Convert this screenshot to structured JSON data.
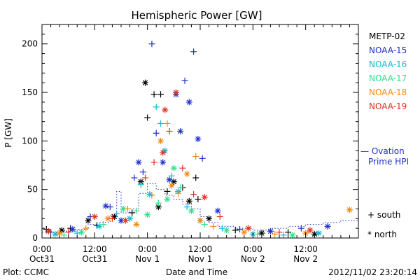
{
  "chart_data": {
    "type": "scatter",
    "title": "Hemispheric Power [GW]",
    "xlabel": "Date and Time",
    "ylabel": "P [GW]",
    "xlim": [
      "2012-10-31 00:00",
      "2012-11-03 00:00"
    ],
    "ylim": [
      0,
      220
    ],
    "yticks": [
      0,
      50,
      100,
      150,
      200
    ],
    "xticks": [
      {
        "line1": "0:00",
        "line2": "Oct31",
        "t": "2012-10-31 00:00"
      },
      {
        "line1": "12:00",
        "line2": "Oct31",
        "t": "2012-10-31 12:00"
      },
      {
        "line1": "0:00",
        "line2": "Nov 1",
        "t": "2012-11-01 00:00"
      },
      {
        "line1": "12:00",
        "line2": "Nov 1",
        "t": "2012-11-01 12:00"
      },
      {
        "line1": "0:00",
        "line2": "Nov 2",
        "t": "2012-11-02 00:00"
      },
      {
        "line1": "12:00",
        "line2": "Nov 2",
        "t": "2012-11-02 12:00"
      }
    ],
    "legend": {
      "placement": "right",
      "entries": [
        {
          "label": "METP-02",
          "color": "#000000"
        },
        {
          "label": "NOAA-15",
          "color": "#1e2fc8"
        },
        {
          "label": "NOAA-16",
          "color": "#17b6d6"
        },
        {
          "label": "NOAA-17",
          "color": "#2fe08a"
        },
        {
          "label": "NOAA-18",
          "color": "#f08a10"
        },
        {
          "label": "NOAA-19",
          "color": "#e0301e"
        }
      ],
      "model_label_line1": "— Ovation",
      "model_label_line2": "Prime HPI",
      "model_color": "#1e2fc8",
      "marker_keys": [
        {
          "symbol": "+",
          "label": "south"
        },
        {
          "symbol": "*",
          "label": "north"
        }
      ]
    },
    "series": [
      {
        "name": "METP-02",
        "color": "#000000",
        "points": [
          {
            "x": 1.0,
            "y": 9,
            "m": "+"
          },
          {
            "x": 4.5,
            "y": 8,
            "m": "*"
          },
          {
            "x": 6.5,
            "y": 10,
            "m": "+"
          },
          {
            "x": 10.5,
            "y": 18,
            "m": "*"
          },
          {
            "x": 12.5,
            "y": 13,
            "m": "+"
          },
          {
            "x": 16.5,
            "y": 22,
            "m": "*"
          },
          {
            "x": 20.5,
            "y": 26,
            "m": "+"
          },
          {
            "x": 22.5,
            "y": 58,
            "m": "*"
          },
          {
            "x": 23.5,
            "y": 160,
            "m": "*"
          },
          {
            "x": 24.0,
            "y": 124,
            "m": "+"
          },
          {
            "x": 25.5,
            "y": 148,
            "m": "+"
          },
          {
            "x": 27.0,
            "y": 148,
            "m": "+"
          },
          {
            "x": 26.5,
            "y": 32,
            "m": "*"
          },
          {
            "x": 28.5,
            "y": 48,
            "m": "+"
          },
          {
            "x": 30.0,
            "y": 58,
            "m": "*"
          },
          {
            "x": 32.0,
            "y": 52,
            "m": "+"
          },
          {
            "x": 33.5,
            "y": 38,
            "m": "*"
          },
          {
            "x": 35.0,
            "y": 62,
            "m": "+"
          },
          {
            "x": 35.5,
            "y": 40,
            "m": "+"
          },
          {
            "x": 38.0,
            "y": 20,
            "m": "*"
          },
          {
            "x": 44.0,
            "y": 8,
            "m": "+"
          },
          {
            "x": 50.0,
            "y": 5,
            "m": "*"
          },
          {
            "x": 56.0,
            "y": 6,
            "m": "+"
          },
          {
            "x": 62.0,
            "y": 4,
            "m": "*"
          }
        ]
      },
      {
        "name": "NOAA-15",
        "color": "#1e2fc8",
        "points": [
          {
            "x": 2.0,
            "y": 6,
            "m": "+"
          },
          {
            "x": 7.0,
            "y": 9,
            "m": "*"
          },
          {
            "x": 11.0,
            "y": 22,
            "m": "+"
          },
          {
            "x": 14.5,
            "y": 33,
            "m": "*"
          },
          {
            "x": 15.5,
            "y": 32,
            "m": "+"
          },
          {
            "x": 18.0,
            "y": 18,
            "m": "*"
          },
          {
            "x": 21.0,
            "y": 62,
            "m": "+"
          },
          {
            "x": 22.0,
            "y": 78,
            "m": "*"
          },
          {
            "x": 23.0,
            "y": 68,
            "m": "+"
          },
          {
            "x": 25.0,
            "y": 200,
            "m": "+"
          },
          {
            "x": 26.0,
            "y": 108,
            "m": "+"
          },
          {
            "x": 27.5,
            "y": 78,
            "m": "*"
          },
          {
            "x": 29.0,
            "y": 60,
            "m": "*"
          },
          {
            "x": 30.5,
            "y": 148,
            "m": "*"
          },
          {
            "x": 31.5,
            "y": 110,
            "m": "*"
          },
          {
            "x": 32.5,
            "y": 162,
            "m": "+"
          },
          {
            "x": 33.5,
            "y": 140,
            "m": "*"
          },
          {
            "x": 34.5,
            "y": 192,
            "m": "+"
          },
          {
            "x": 35.5,
            "y": 102,
            "m": "*"
          },
          {
            "x": 36.5,
            "y": 82,
            "m": "+"
          },
          {
            "x": 40.0,
            "y": 28,
            "m": "*"
          },
          {
            "x": 45.0,
            "y": 9,
            "m": "+"
          },
          {
            "x": 52.0,
            "y": 7,
            "m": "*"
          },
          {
            "x": 59.0,
            "y": 10,
            "m": "+"
          },
          {
            "x": 65.0,
            "y": 12,
            "m": "*"
          }
        ]
      },
      {
        "name": "NOAA-16",
        "color": "#17b6d6",
        "points": [
          {
            "x": 3.0,
            "y": 4,
            "m": "*"
          },
          {
            "x": 8.0,
            "y": 5,
            "m": "+"
          },
          {
            "x": 13.0,
            "y": 12,
            "m": "*"
          },
          {
            "x": 17.0,
            "y": 25,
            "m": "+"
          },
          {
            "x": 20.0,
            "y": 20,
            "m": "*"
          },
          {
            "x": 22.5,
            "y": 55,
            "m": "+"
          },
          {
            "x": 24.5,
            "y": 45,
            "m": "*"
          },
          {
            "x": 26.0,
            "y": 135,
            "m": "+"
          },
          {
            "x": 27.0,
            "y": 118,
            "m": "+"
          },
          {
            "x": 28.0,
            "y": 90,
            "m": "*"
          },
          {
            "x": 29.5,
            "y": 64,
            "m": "+"
          },
          {
            "x": 31.0,
            "y": 48,
            "m": "*"
          },
          {
            "x": 33.0,
            "y": 32,
            "m": "+"
          },
          {
            "x": 36.0,
            "y": 18,
            "m": "*"
          },
          {
            "x": 41.0,
            "y": 10,
            "m": "+"
          },
          {
            "x": 48.0,
            "y": 4,
            "m": "*"
          },
          {
            "x": 55.0,
            "y": 3,
            "m": "+"
          },
          {
            "x": 63.0,
            "y": 5,
            "m": "*"
          }
        ]
      },
      {
        "name": "NOAA-17",
        "color": "#2fe08a",
        "points": [
          {
            "x": 5.0,
            "y": 3,
            "m": "+"
          },
          {
            "x": 9.0,
            "y": 6,
            "m": "*"
          },
          {
            "x": 14.0,
            "y": 14,
            "m": "+"
          },
          {
            "x": 18.5,
            "y": 30,
            "m": "*"
          },
          {
            "x": 21.5,
            "y": 28,
            "m": "+"
          },
          {
            "x": 24.0,
            "y": 24,
            "m": "*"
          },
          {
            "x": 26.5,
            "y": 36,
            "m": "+"
          },
          {
            "x": 28.5,
            "y": 40,
            "m": "*"
          },
          {
            "x": 30.0,
            "y": 72,
            "m": "*"
          },
          {
            "x": 31.5,
            "y": 52,
            "m": "+"
          },
          {
            "x": 34.0,
            "y": 28,
            "m": "*"
          },
          {
            "x": 37.0,
            "y": 14,
            "m": "+"
          },
          {
            "x": 42.0,
            "y": 8,
            "m": "*"
          },
          {
            "x": 49.0,
            "y": 4,
            "m": "+"
          },
          {
            "x": 57.0,
            "y": 3,
            "m": "*"
          }
        ]
      },
      {
        "name": "NOAA-18",
        "color": "#f08a10",
        "points": [
          {
            "x": 4.0,
            "y": 5,
            "m": "*"
          },
          {
            "x": 10.0,
            "y": 10,
            "m": "+"
          },
          {
            "x": 15.0,
            "y": 20,
            "m": "*"
          },
          {
            "x": 19.5,
            "y": 30,
            "m": "+"
          },
          {
            "x": 21.5,
            "y": 14,
            "m": "*"
          },
          {
            "x": 25.0,
            "y": 44,
            "m": "+"
          },
          {
            "x": 27.0,
            "y": 100,
            "m": "*"
          },
          {
            "x": 28.5,
            "y": 118,
            "m": "+"
          },
          {
            "x": 29.5,
            "y": 54,
            "m": "*"
          },
          {
            "x": 31.0,
            "y": 46,
            "m": "+"
          },
          {
            "x": 33.0,
            "y": 66,
            "m": "*"
          },
          {
            "x": 35.0,
            "y": 84,
            "m": "+"
          },
          {
            "x": 36.0,
            "y": 18,
            "m": "*"
          },
          {
            "x": 39.0,
            "y": 12,
            "m": "+"
          },
          {
            "x": 46.0,
            "y": 6,
            "m": "*"
          },
          {
            "x": 53.0,
            "y": 4,
            "m": "+"
          },
          {
            "x": 60.0,
            "y": 5,
            "m": "*"
          },
          {
            "x": 70.0,
            "y": 29,
            "m": "*"
          }
        ]
      },
      {
        "name": "NOAA-19",
        "color": "#e0301e",
        "points": [
          {
            "x": 1.5,
            "y": 7,
            "m": "*"
          },
          {
            "x": 6.0,
            "y": 6,
            "m": "+"
          },
          {
            "x": 12.0,
            "y": 22,
            "m": "*"
          },
          {
            "x": 16.0,
            "y": 20,
            "m": "+"
          },
          {
            "x": 19.0,
            "y": 18,
            "m": "*"
          },
          {
            "x": 23.5,
            "y": 62,
            "m": "+"
          },
          {
            "x": 25.5,
            "y": 78,
            "m": "+"
          },
          {
            "x": 27.5,
            "y": 88,
            "m": "*"
          },
          {
            "x": 28.0,
            "y": 132,
            "m": "*"
          },
          {
            "x": 29.0,
            "y": 110,
            "m": "+"
          },
          {
            "x": 30.5,
            "y": 150,
            "m": "*"
          },
          {
            "x": 32.0,
            "y": 72,
            "m": "+"
          },
          {
            "x": 34.5,
            "y": 45,
            "m": "+"
          },
          {
            "x": 37.0,
            "y": 42,
            "m": "*"
          },
          {
            "x": 40.5,
            "y": 22,
            "m": "+"
          },
          {
            "x": 47.0,
            "y": 10,
            "m": "*"
          },
          {
            "x": 54.0,
            "y": 6,
            "m": "+"
          },
          {
            "x": 61.0,
            "y": 8,
            "m": "*"
          }
        ]
      }
    ],
    "model": {
      "name": "Ovation Prime HPI",
      "color": "#1e2fc8",
      "points": [
        {
          "x": 0.0,
          "y": 6
        },
        {
          "x": 4.0,
          "y": 7
        },
        {
          "x": 8.0,
          "y": 9
        },
        {
          "x": 10.5,
          "y": 14
        },
        {
          "x": 13.0,
          "y": 16
        },
        {
          "x": 15.5,
          "y": 24
        },
        {
          "x": 17.0,
          "y": 48
        },
        {
          "x": 18.0,
          "y": 26
        },
        {
          "x": 20.0,
          "y": 30
        },
        {
          "x": 22.0,
          "y": 46
        },
        {
          "x": 24.0,
          "y": 56
        },
        {
          "x": 26.0,
          "y": 50
        },
        {
          "x": 28.0,
          "y": 44
        },
        {
          "x": 30.0,
          "y": 40
        },
        {
          "x": 32.0,
          "y": 35
        },
        {
          "x": 34.0,
          "y": 30
        },
        {
          "x": 36.0,
          "y": 22
        },
        {
          "x": 38.0,
          "y": 16
        },
        {
          "x": 40.0,
          "y": 12
        },
        {
          "x": 44.0,
          "y": 10
        },
        {
          "x": 48.0,
          "y": 8
        },
        {
          "x": 52.0,
          "y": 10
        },
        {
          "x": 56.0,
          "y": 12
        },
        {
          "x": 60.0,
          "y": 14
        },
        {
          "x": 64.0,
          "y": 16
        },
        {
          "x": 68.0,
          "y": 18
        },
        {
          "x": 72.0,
          "y": 14
        }
      ]
    }
  },
  "footer": {
    "left": "Plot: CCMC",
    "right": "2012/11/02 23:20:14"
  }
}
